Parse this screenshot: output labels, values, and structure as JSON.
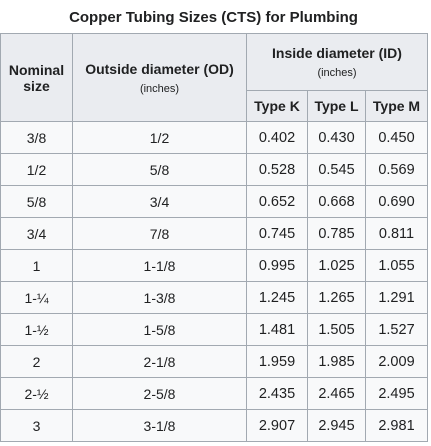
{
  "caption": "Copper Tubing Sizes (CTS) for Plumbing",
  "header": {
    "nominal_size": "Nominal size",
    "od_title": "Outside diameter (OD)",
    "od_unit": "(inches)",
    "id_title": "Inside diameter (ID)",
    "id_unit": "(inches)",
    "types": [
      "Type K",
      "Type L",
      "Type M"
    ]
  },
  "rows": [
    [
      "3/8",
      "1/2",
      "0.402",
      "0.430",
      "0.450"
    ],
    [
      "1/2",
      "5/8",
      "0.528",
      "0.545",
      "0.569"
    ],
    [
      "5/8",
      "3/4",
      "0.652",
      "0.668",
      "0.690"
    ],
    [
      "3/4",
      "7/8",
      "0.745",
      "0.785",
      "0.811"
    ],
    [
      "1",
      "1-1/8",
      "0.995",
      "1.025",
      "1.055"
    ],
    [
      "1-¼",
      "1-3/8",
      "1.245",
      "1.265",
      "1.291"
    ],
    [
      "1-½",
      "1-5/8",
      "1.481",
      "1.505",
      "1.527"
    ],
    [
      "2",
      "2-1/8",
      "1.959",
      "1.985",
      "2.009"
    ],
    [
      "2-½",
      "2-5/8",
      "2.435",
      "2.465",
      "2.495"
    ],
    [
      "3",
      "3-1/8",
      "2.907",
      "2.945",
      "2.981"
    ]
  ]
}
